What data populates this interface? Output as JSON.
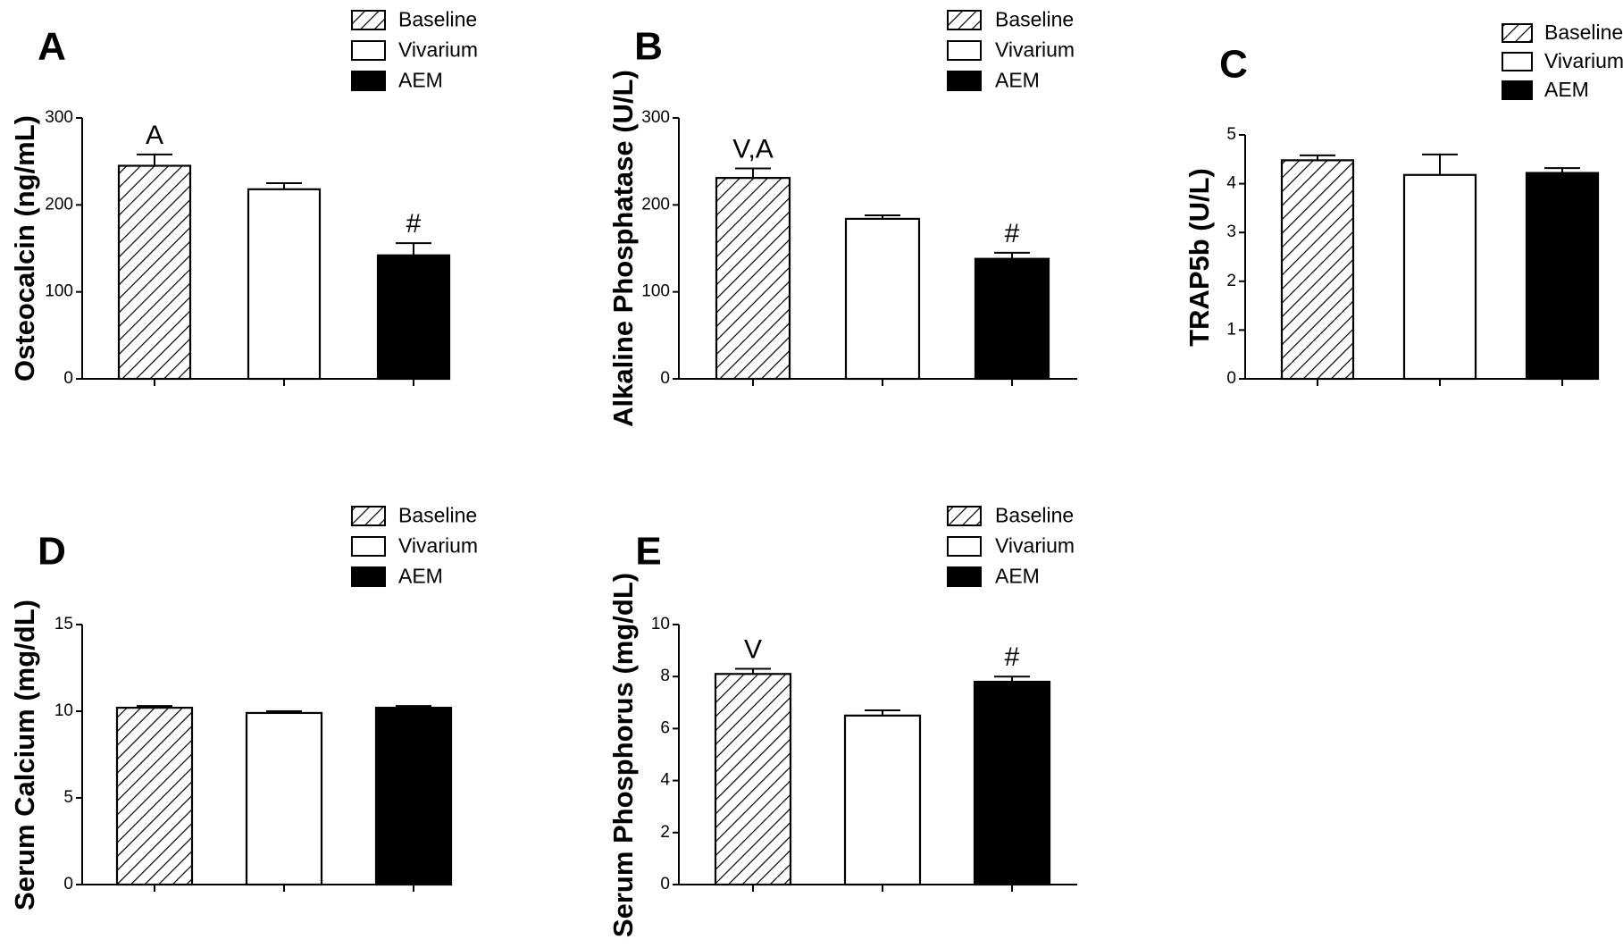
{
  "figure": {
    "group_labels": [
      "Baseline",
      "Vivarium",
      "AEM"
    ]
  },
  "chart_data": [
    {
      "panel": "A",
      "type": "bar",
      "ylabel": "Osteocalcin (ng/mL)",
      "ylim": [
        0,
        300
      ],
      "yticks": [
        "0",
        "100",
        "200",
        "300"
      ],
      "categories": [
        "Baseline",
        "Vivarium",
        "AEM"
      ],
      "values": [
        245,
        218,
        142
      ],
      "errors": [
        13,
        7,
        14
      ],
      "annotations": [
        "A",
        "",
        "#"
      ],
      "legend": [
        "Baseline",
        "Vivarium",
        "AEM"
      ]
    },
    {
      "panel": "B",
      "type": "bar",
      "ylabel": "Alkaline Phosphatase (U/L)",
      "ylim": [
        0,
        300
      ],
      "yticks": [
        "0",
        "100",
        "200",
        "300"
      ],
      "categories": [
        "Baseline",
        "Vivarium",
        "AEM"
      ],
      "values": [
        231,
        184,
        138
      ],
      "errors": [
        11,
        4,
        7
      ],
      "annotations": [
        "V,A",
        "",
        "#"
      ],
      "legend": [
        "Baseline",
        "Vivarium",
        "AEM"
      ]
    },
    {
      "panel": "C",
      "type": "bar",
      "ylabel": "TRAP5b (U/L)",
      "ylim": [
        0,
        5
      ],
      "yticks": [
        "0",
        "1",
        "2",
        "3",
        "4",
        "5"
      ],
      "categories": [
        "Baseline",
        "Vivarium",
        "AEM"
      ],
      "values": [
        4.48,
        4.18,
        4.22
      ],
      "errors": [
        0.1,
        0.42,
        0.1
      ],
      "annotations": [
        "",
        "",
        ""
      ],
      "legend": [
        "Baseline",
        "Vivarium",
        "AEM"
      ]
    },
    {
      "panel": "D",
      "type": "bar",
      "ylabel": "Serum Calcium (mg/dL)",
      "ylim": [
        0,
        15
      ],
      "yticks": [
        "0",
        "5",
        "10",
        "15"
      ],
      "categories": [
        "Baseline",
        "Vivarium",
        "AEM"
      ],
      "values": [
        10.2,
        9.9,
        10.2
      ],
      "errors": [
        0.1,
        0.1,
        0.1
      ],
      "annotations": [
        "",
        "",
        ""
      ],
      "legend": [
        "Baseline",
        "Vivarium",
        "AEM"
      ]
    },
    {
      "panel": "E",
      "type": "bar",
      "ylabel": "Serum Phosphorus (mg/dL)",
      "ylim": [
        0,
        10
      ],
      "yticks": [
        "0",
        "2",
        "4",
        "6",
        "8",
        "10"
      ],
      "categories": [
        "Baseline",
        "Vivarium",
        "AEM"
      ],
      "values": [
        8.1,
        6.5,
        7.8
      ],
      "errors": [
        0.2,
        0.2,
        0.2
      ],
      "annotations": [
        "V",
        "",
        "#"
      ],
      "legend": [
        "Baseline",
        "Vivarium",
        "AEM"
      ]
    }
  ]
}
